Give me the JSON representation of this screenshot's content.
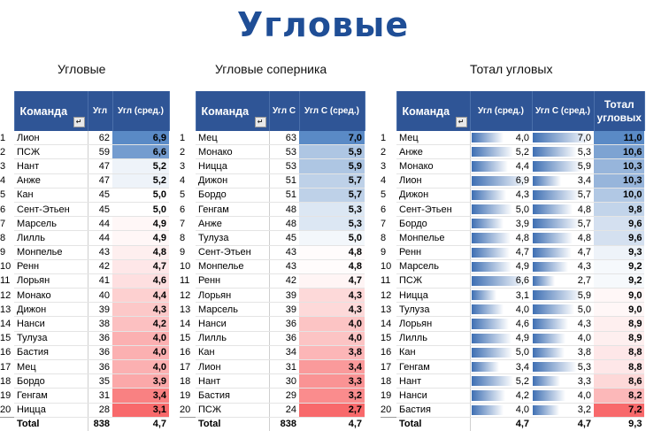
{
  "main_title": "Угловые",
  "sections": [
    {
      "title": "Угловые",
      "headers": [
        "Команда",
        "Угл",
        "Угл (сред.)"
      ],
      "rows": [
        [
          "1",
          "Лион",
          "62",
          "6,9"
        ],
        [
          "2",
          "ПСЖ",
          "59",
          "6,6"
        ],
        [
          "3",
          "Нант",
          "47",
          "5,2"
        ],
        [
          "4",
          "Анже",
          "47",
          "5,2"
        ],
        [
          "5",
          "Кан",
          "45",
          "5,0"
        ],
        [
          "6",
          "Сент-Этьен",
          "45",
          "5,0"
        ],
        [
          "7",
          "Марсель",
          "44",
          "4,9"
        ],
        [
          "8",
          "Лилль",
          "44",
          "4,9"
        ],
        [
          "9",
          "Монпелье",
          "43",
          "4,8"
        ],
        [
          "10",
          "Ренн",
          "42",
          "4,7"
        ],
        [
          "11",
          "Лорьян",
          "41",
          "4,6"
        ],
        [
          "12",
          "Монако",
          "40",
          "4,4"
        ],
        [
          "13",
          "Дижон",
          "39",
          "4,3"
        ],
        [
          "14",
          "Нанси",
          "38",
          "4,2"
        ],
        [
          "15",
          "Тулуза",
          "36",
          "4,0"
        ],
        [
          "16",
          "Бастия",
          "36",
          "4,0"
        ],
        [
          "17",
          "Мец",
          "36",
          "4,0"
        ],
        [
          "18",
          "Бордо",
          "35",
          "3,9"
        ],
        [
          "19",
          "Генгам",
          "31",
          "3,4"
        ],
        [
          "20",
          "Ницца",
          "28",
          "3,1"
        ]
      ],
      "total": [
        "Total",
        "838",
        "4,7"
      ]
    },
    {
      "title": "Угловые соперника",
      "headers": [
        "Команда",
        "Угл С",
        "Угл С (сред.)"
      ],
      "rows": [
        [
          "1",
          "Мец",
          "63",
          "7,0"
        ],
        [
          "2",
          "Монако",
          "53",
          "5,9"
        ],
        [
          "3",
          "Ницца",
          "53",
          "5,9"
        ],
        [
          "4",
          "Дижон",
          "51",
          "5,7"
        ],
        [
          "5",
          "Бордо",
          "51",
          "5,7"
        ],
        [
          "6",
          "Генгам",
          "48",
          "5,3"
        ],
        [
          "7",
          "Анже",
          "48",
          "5,3"
        ],
        [
          "8",
          "Тулуза",
          "45",
          "5,0"
        ],
        [
          "9",
          "Сент-Этьен",
          "43",
          "4,8"
        ],
        [
          "10",
          "Монпелье",
          "43",
          "4,8"
        ],
        [
          "11",
          "Ренн",
          "42",
          "4,7"
        ],
        [
          "12",
          "Лорьян",
          "39",
          "4,3"
        ],
        [
          "13",
          "Марсель",
          "39",
          "4,3"
        ],
        [
          "14",
          "Нанси",
          "36",
          "4,0"
        ],
        [
          "15",
          "Лилль",
          "36",
          "4,0"
        ],
        [
          "16",
          "Кан",
          "34",
          "3,8"
        ],
        [
          "17",
          "Лион",
          "31",
          "3,4"
        ],
        [
          "18",
          "Нант",
          "30",
          "3,3"
        ],
        [
          "19",
          "Бастия",
          "29",
          "3,2"
        ],
        [
          "20",
          "ПСЖ",
          "24",
          "2,7"
        ]
      ],
      "total": [
        "Total",
        "838",
        "4,7"
      ]
    },
    {
      "title": "Тотал угловых",
      "headers": [
        "Команда",
        "Угл (сред.)",
        "Угл С (сред.)",
        "Тотал угловых"
      ],
      "rows": [
        [
          "1",
          "Мец",
          "4,0",
          "7,0",
          "11,0"
        ],
        [
          "2",
          "Анже",
          "5,2",
          "5,3",
          "10,6"
        ],
        [
          "3",
          "Монако",
          "4,4",
          "5,9",
          "10,3"
        ],
        [
          "4",
          "Лион",
          "6,9",
          "3,4",
          "10,3"
        ],
        [
          "5",
          "Дижон",
          "4,3",
          "5,7",
          "10,0"
        ],
        [
          "6",
          "Сент-Этьен",
          "5,0",
          "4,8",
          "9,8"
        ],
        [
          "7",
          "Бордо",
          "3,9",
          "5,7",
          "9,6"
        ],
        [
          "8",
          "Монпелье",
          "4,8",
          "4,8",
          "9,6"
        ],
        [
          "9",
          "Ренн",
          "4,7",
          "4,7",
          "9,3"
        ],
        [
          "10",
          "Марсель",
          "4,9",
          "4,3",
          "9,2"
        ],
        [
          "11",
          "ПСЖ",
          "6,6",
          "2,7",
          "9,2"
        ],
        [
          "12",
          "Ницца",
          "3,1",
          "5,9",
          "9,0"
        ],
        [
          "13",
          "Тулуза",
          "4,0",
          "5,0",
          "9,0"
        ],
        [
          "14",
          "Лорьян",
          "4,6",
          "4,3",
          "8,9"
        ],
        [
          "15",
          "Лилль",
          "4,9",
          "4,0",
          "8,9"
        ],
        [
          "16",
          "Кан",
          "5,0",
          "3,8",
          "8,8"
        ],
        [
          "17",
          "Генгам",
          "3,4",
          "5,3",
          "8,8"
        ],
        [
          "18",
          "Нант",
          "5,2",
          "3,3",
          "8,6"
        ],
        [
          "19",
          "Нанси",
          "4,2",
          "4,0",
          "8,2"
        ],
        [
          "20",
          "Бастия",
          "4,0",
          "3,2",
          "7,2"
        ]
      ],
      "total": [
        "Total",
        "4,7",
        "4,7",
        "9,3"
      ]
    }
  ],
  "filter_icon": "sort-filter-icon",
  "colors": {
    "title": "#1f4e96",
    "header": "#2f5596",
    "low": "#f8696b",
    "mid": "#ffffff",
    "high": "#5a8ac6"
  }
}
